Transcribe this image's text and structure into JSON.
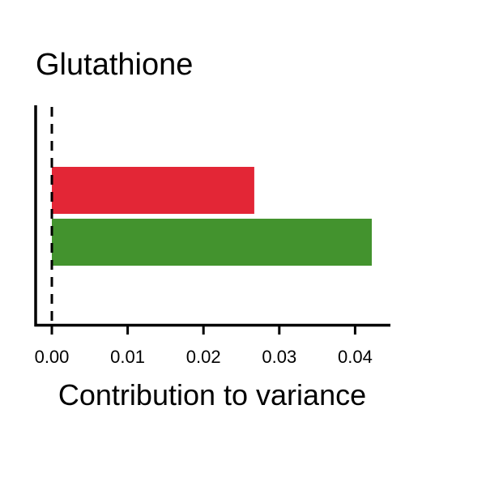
{
  "chart_data": {
    "type": "bar",
    "orientation": "horizontal",
    "title": "Glutathione",
    "xlabel": "Contribution to variance",
    "ylabel": "",
    "xlim": [
      0,
      0.0445
    ],
    "xticks": [
      0.0,
      0.01,
      0.02,
      0.03,
      0.04
    ],
    "xtick_labels": [
      "0.00",
      "0.01",
      "0.02",
      "0.03",
      "0.04"
    ],
    "reference_line": {
      "value": 0,
      "style": "dashed"
    },
    "grid": false,
    "legend": "none",
    "bars": [
      {
        "value": 0.0267,
        "color": "#e32636"
      },
      {
        "value": 0.0422,
        "color": "#43932e"
      }
    ]
  }
}
